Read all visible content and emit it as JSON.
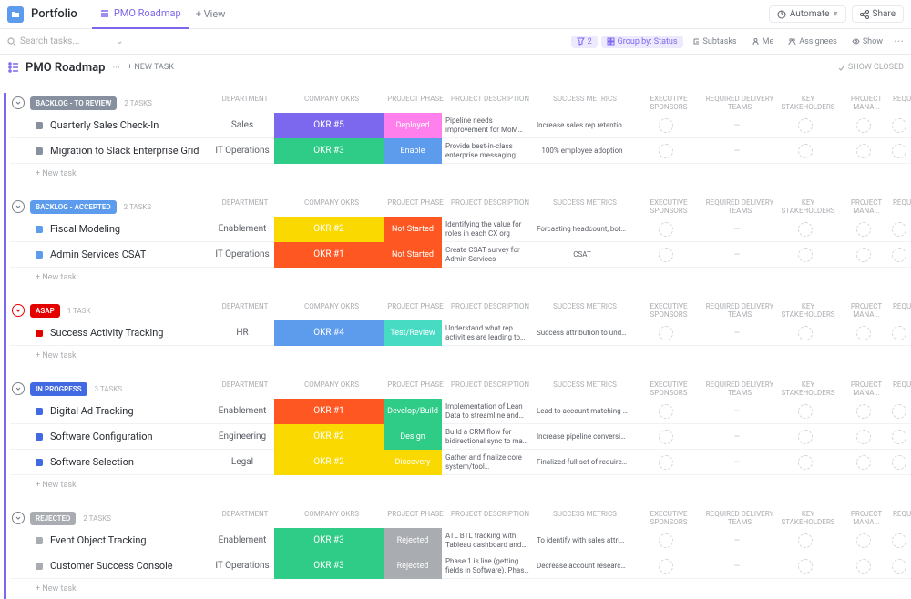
{
  "topbar": {
    "portfolio": "Portfolio",
    "roadmap_tab": "PMO Roadmap",
    "view": "+ View",
    "automate": "Automate",
    "share": "Share"
  },
  "searchbar": {
    "placeholder": "Search tasks...",
    "filter_count": "2",
    "group_by": "Group by: Status",
    "subtasks": "Subtasks",
    "me": "Me",
    "assignees": "Assignees",
    "show": "Show"
  },
  "header": {
    "title": "PMO Roadmap",
    "new_task": "+ NEW TASK",
    "show_closed": "SHOW CLOSED"
  },
  "cols": {
    "dept": "DEPARTMENT",
    "okr": "COMPANY OKRS",
    "phase": "PROJECT PHASE",
    "desc": "PROJECT DESCRIPTION",
    "metrics": "SUCCESS METRICS",
    "sponsors": "EXECUTIVE SPONSORS",
    "delivery": "REQUIRED DELIVERY TEAMS",
    "stake": "KEY STAKEHOLDERS",
    "mana": "PROJECT MANA...",
    "requ": "REQU..."
  },
  "new_task_row": "+ New task",
  "groups": [
    {
      "status": "BACKLOG - TO REVIEW",
      "status_color": "#87909e",
      "count": "2 TASKS",
      "collapse_color": "#7c828d",
      "tasks": [
        {
          "dot": "#87909e",
          "name": "Quarterly Sales Check-In",
          "dept": "Sales",
          "okr": "OKR #5",
          "okr_color": "#7b68ee",
          "phase": "Deployed",
          "phase_color": "#ff80ed",
          "desc": "Pipeline needs improvement for MoM and QoQ forecasting and qu...",
          "metrics": "Increase sales rep retention rates Q..."
        },
        {
          "dot": "#87909e",
          "name": "Migration to Slack Enterprise Grid",
          "dept": "IT Operations",
          "okr": "OKR #3",
          "okr_color": "#2ecc87",
          "phase": "Enable",
          "phase_color": "#5d9cec",
          "desc": "Provide best-in-class enterprise messaging platform opening acce...",
          "metrics": "100% employee adoption"
        }
      ]
    },
    {
      "status": "BACKLOG - ACCEPTED",
      "status_color": "#5d9cec",
      "count": "2 TASKS",
      "collapse_color": "#7c828d",
      "tasks": [
        {
          "dot": "#5d9cec",
          "name": "Fiscal Modeling",
          "dept": "Enablement",
          "okr": "OKR #2",
          "okr_color": "#f9d900",
          "phase": "Not Started",
          "phase_color": "#ff5722",
          "desc": "Identifying the value for roles in each CX org",
          "metrics": "Forcasting headcount, bottom line, ..."
        },
        {
          "dot": "#5d9cec",
          "name": "Admin Services CSAT",
          "dept": "IT Operations",
          "okr": "OKR #1",
          "okr_color": "#ff5722",
          "phase": "Not Started",
          "phase_color": "#ff5722",
          "desc": "Create CSAT survey for Admin Services",
          "metrics": "CSAT"
        }
      ]
    },
    {
      "status": "ASAP",
      "status_color": "#e50000",
      "count": "1 TASK",
      "collapse_color": "#e50000",
      "tasks": [
        {
          "dot": "#e50000",
          "name": "Success Activity Tracking",
          "dept": "HR",
          "okr": "OKR #4",
          "okr_color": "#5d9cec",
          "phase": "Test/Review",
          "phase_color": "#48dbc4",
          "desc": "Understand what rep activities are leading to retention and expansion...",
          "metrics": "Success attribution to understand c..."
        }
      ]
    },
    {
      "status": "IN PROGRESS",
      "status_color": "#4169e1",
      "count": "3 TASKS",
      "collapse_color": "#7c828d",
      "tasks": [
        {
          "dot": "#4169e1",
          "name": "Digital Ad Tracking",
          "dept": "Enablement",
          "okr": "OKR #1",
          "okr_color": "#ff5722",
          "phase": "Develop/Build",
          "phase_color": "#2ecc87",
          "desc": "Implementation of Lean Data to streamline and automate the lead ...",
          "metrics": "Lead to account matching and hand..."
        },
        {
          "dot": "#4169e1",
          "name": "Software Configuration",
          "dept": "Engineering",
          "okr": "OKR #2",
          "okr_color": "#f9d900",
          "phase": "Design",
          "phase_color": "#2ecc87",
          "desc": "Build a CRM flow for bidirectional sync to map required Software",
          "metrics": "Increase pipeline conversion of new..."
        },
        {
          "dot": "#4169e1",
          "name": "Software Selection",
          "dept": "Legal",
          "okr": "OKR #2",
          "okr_color": "#f9d900",
          "phase": "Discovery",
          "phase_color": "#f9d900",
          "desc": "Gather and finalize core system/tool requirements, MoSCoW capabiliti...",
          "metrics": "Finalized full set of requirements for..."
        }
      ]
    },
    {
      "status": "REJECTED",
      "status_color": "#a9acb0",
      "count": "2 TASKS",
      "collapse_color": "#7c828d",
      "tasks": [
        {
          "dot": "#a9acb0",
          "name": "Event Object Tracking",
          "dept": "Enablement",
          "okr": "OKR #3",
          "okr_color": "#2ecc87",
          "phase": "Rejected",
          "phase_color": "#a9acb0",
          "desc": "ATL BTL tracking with Tableau dashboard and mapping to lead a...",
          "metrics": "To identify with sales attribution vari..."
        },
        {
          "dot": "#a9acb0",
          "name": "Customer Success Console",
          "dept": "IT Operations",
          "okr": "OKR #3",
          "okr_color": "#2ecc87",
          "phase": "Rejected",
          "phase_color": "#a9acb0",
          "desc": "Phase 1 is live (getting fields in Software).  Phase 2: Automations ...",
          "metrics": "Decrease account research time for..."
        }
      ]
    }
  ]
}
